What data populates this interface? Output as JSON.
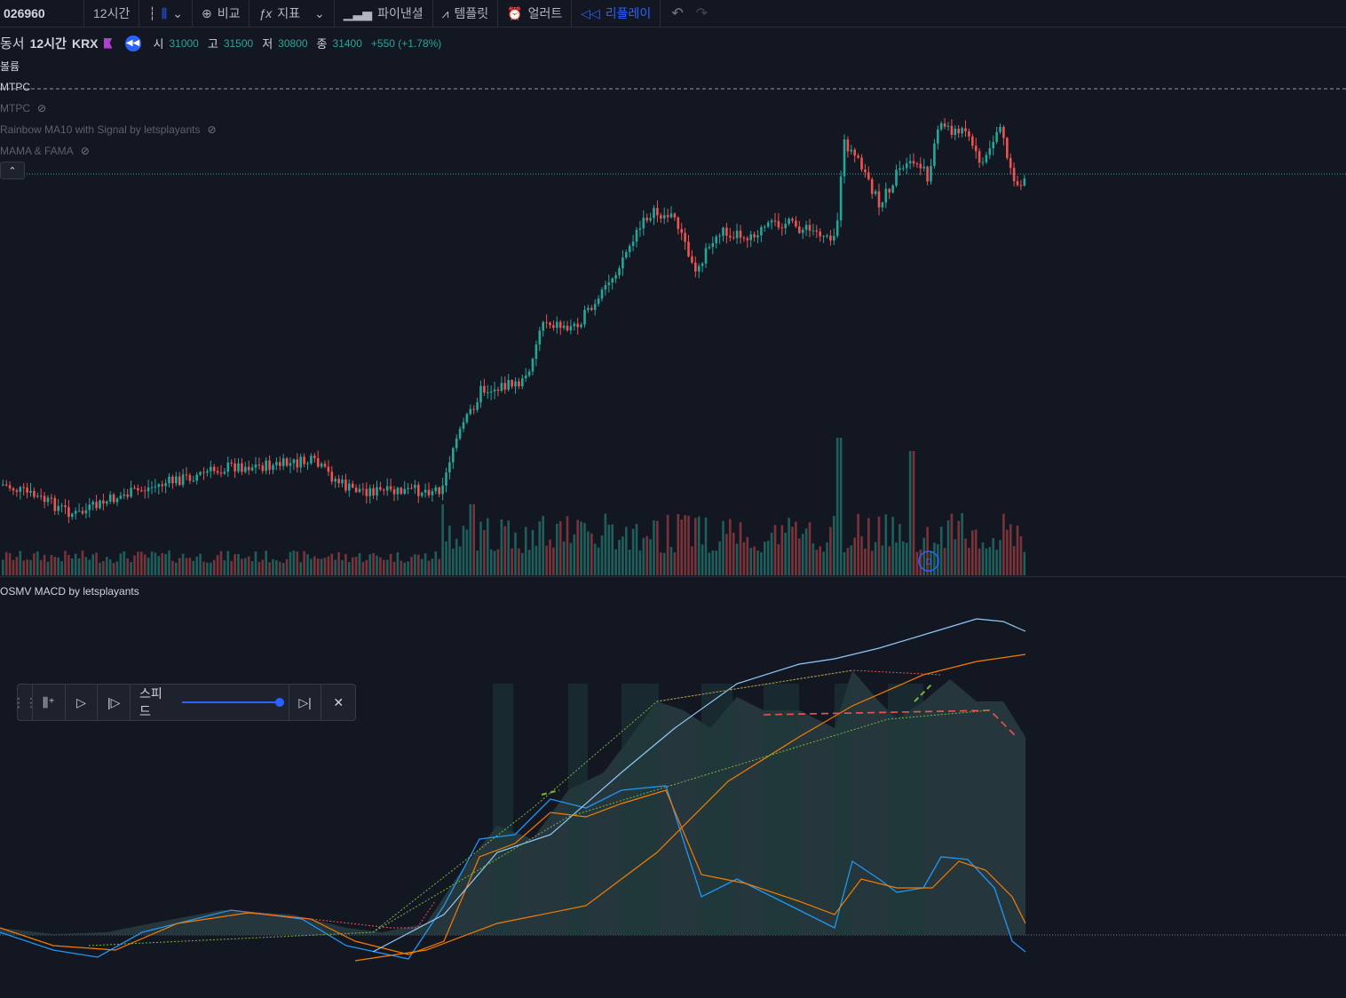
{
  "toolbar": {
    "symbol": "026960",
    "interval": "12시간",
    "compare": "비교",
    "indicators": "지표",
    "financials": "파이낸셜",
    "templates": "템플릿",
    "alerts": "얼러트",
    "replay": "리플레이"
  },
  "legend": {
    "name": "동서",
    "interval": "12시간",
    "exchange": "KRX",
    "open_label": "시",
    "open": "31000",
    "high_label": "고",
    "high": "31500",
    "low_label": "저",
    "low": "30800",
    "close_label": "종",
    "close": "31400",
    "change": "+550 (+1.78%)"
  },
  "indicators": [
    {
      "label": "볼륨",
      "visible": true
    },
    {
      "label": "MTPC",
      "visible": true
    },
    {
      "label": "MTPC",
      "visible": false
    },
    {
      "label": "Rainbow MA10 with Signal by letsplayants",
      "visible": false
    },
    {
      "label": "MAMA & FAMA",
      "visible": false
    }
  ],
  "lower_pane": {
    "title": "OSMV MACD by letsplayants"
  },
  "replay_bar": {
    "speed_label": "스피드",
    "speed_level": 1.0
  },
  "colors": {
    "up": "#26a69a",
    "down": "#ef5350",
    "bg": "#131722",
    "accent": "#2962ff"
  },
  "icons": {
    "bar_style": "candle-icon",
    "compare": "plus-circle-icon",
    "indicators": "fx-icon",
    "financials": "bar-chart-icon",
    "templates": "template-icon",
    "alerts": "alarm-clock-icon",
    "replay": "rewind-icon",
    "undo": "undo-icon",
    "redo": "redo-icon",
    "hidden": "eye-off-icon"
  }
}
